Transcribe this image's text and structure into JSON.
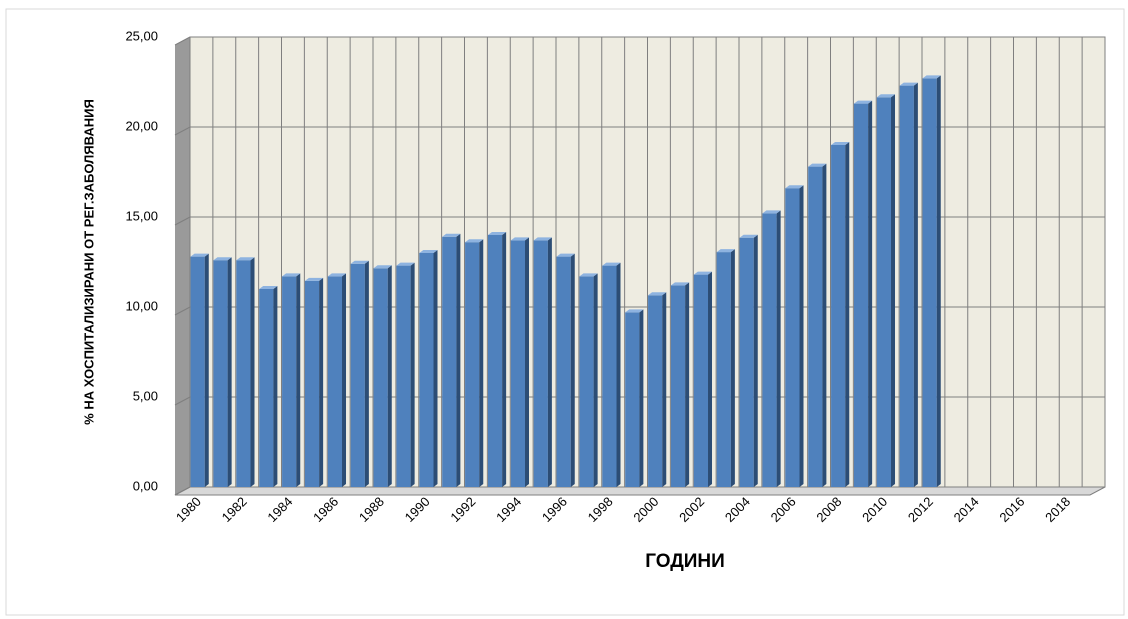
{
  "chart_data": {
    "type": "bar",
    "y_label": "% НА ХОСПИТАЛИЗИРАНИ ОТ РЕГ.ЗАБОЛЯВАНИЯ",
    "x_label": "ГОДИНИ",
    "categories": [
      "1980",
      null,
      "1982",
      null,
      "1984",
      null,
      "1986",
      null,
      "1988",
      null,
      "1990",
      null,
      "1992",
      null,
      "1994",
      null,
      "1996",
      null,
      "1998",
      null,
      "2000",
      null,
      "2002",
      null,
      "2004",
      null,
      "2006",
      null,
      "2008",
      null,
      "2010",
      null,
      "2012",
      null,
      "2014",
      null,
      "2016",
      null,
      "2018",
      null
    ],
    "values": [
      12.8,
      12.6,
      12.6,
      11.0,
      11.7,
      11.45,
      11.7,
      12.4,
      12.15,
      12.3,
      13.0,
      13.9,
      13.6,
      14.0,
      13.7,
      13.7,
      12.8,
      11.7,
      12.3,
      9.7,
      10.65,
      11.2,
      11.8,
      13.05,
      13.85,
      15.2,
      16.6,
      17.8,
      19.0,
      21.3,
      21.65,
      22.3,
      22.7,
      null,
      null,
      null,
      null,
      null,
      null,
      null
    ],
    "color": "#4f81bd",
    "ylim": [
      0,
      25
    ],
    "yticks": [
      {
        "value": 0,
        "label": "0,00"
      },
      {
        "value": 5,
        "label": "5,00"
      },
      {
        "value": 10,
        "label": "10,00"
      },
      {
        "value": 15,
        "label": "15,00"
      },
      {
        "value": 20,
        "label": "20,00"
      },
      {
        "value": 25,
        "label": "25,00"
      }
    ],
    "grid": true
  }
}
